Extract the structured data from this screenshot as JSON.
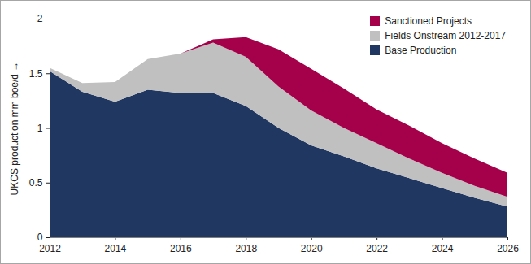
{
  "chart_data": {
    "type": "area",
    "stacked": true,
    "legend": "top-right",
    "y_label": "UKCS production mm boe/d",
    "x": [
      2012,
      2013,
      2014,
      2015,
      2016,
      2017,
      2018,
      2019,
      2020,
      2021,
      2022,
      2023,
      2024,
      2025,
      2026
    ],
    "series": [
      {
        "name": "Base Production",
        "color": "#1f3761",
        "values": [
          1.52,
          1.33,
          1.24,
          1.35,
          1.32,
          1.32,
          1.2,
          1.0,
          0.84,
          0.74,
          0.63,
          0.54,
          0.45,
          0.36,
          0.28
        ]
      },
      {
        "name": "Fields Onstream 2012-2017",
        "color": "#c0c0c0",
        "values": [
          0.03,
          0.08,
          0.18,
          0.28,
          0.36,
          0.46,
          0.45,
          0.38,
          0.32,
          0.26,
          0.23,
          0.18,
          0.14,
          0.11,
          0.09
        ]
      },
      {
        "name": "Sanctioned Projects",
        "color": "#a5004a",
        "values": [
          0,
          0,
          0,
          0,
          0,
          0.03,
          0.18,
          0.34,
          0.38,
          0.36,
          0.31,
          0.3,
          0.27,
          0.25,
          0.22
        ]
      }
    ],
    "xlim": [
      2012,
      2026
    ],
    "xticks": [
      2012,
      2014,
      2016,
      2018,
      2020,
      2022,
      2024,
      2026
    ],
    "ylim": [
      0,
      2
    ],
    "yticks": [
      0,
      0.5,
      1,
      1.5,
      2
    ],
    "grid": false
  }
}
